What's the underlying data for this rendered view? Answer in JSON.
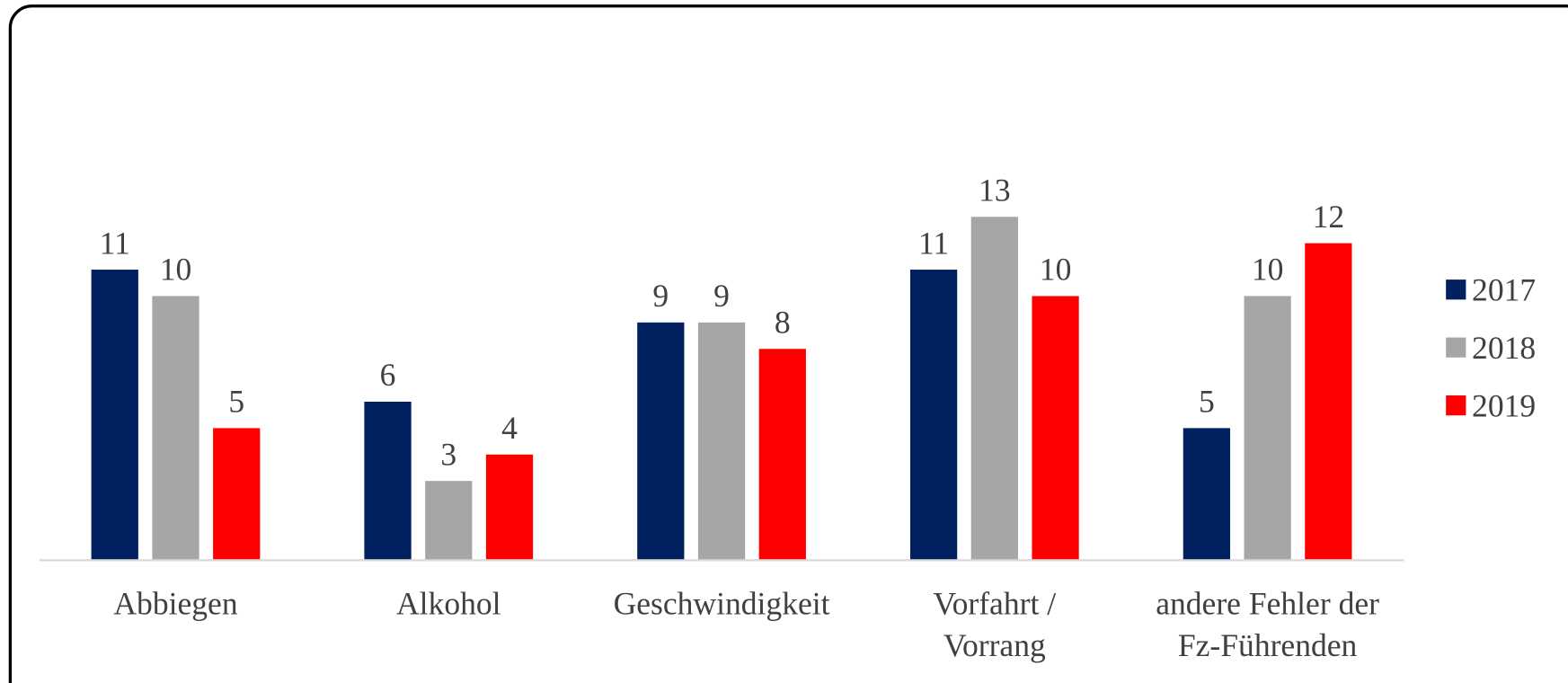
{
  "chart_data": {
    "type": "bar",
    "categories": [
      "Abbiegen",
      "Alkohol",
      "Geschwindigkeit",
      "Vorfahrt /\nVorrang",
      "andere Fehler der\nFz-Führenden"
    ],
    "series": [
      {
        "name": "2017",
        "color": "#002060",
        "values": [
          11,
          6,
          9,
          11,
          5
        ]
      },
      {
        "name": "2018",
        "color": "#a6a6a6",
        "values": [
          10,
          3,
          9,
          13,
          10
        ]
      },
      {
        "name": "2019",
        "color": "#ff0000",
        "values": [
          5,
          4,
          8,
          10,
          12
        ]
      }
    ],
    "ylim": [
      0,
      20
    ],
    "legend": "right",
    "grid": false
  }
}
